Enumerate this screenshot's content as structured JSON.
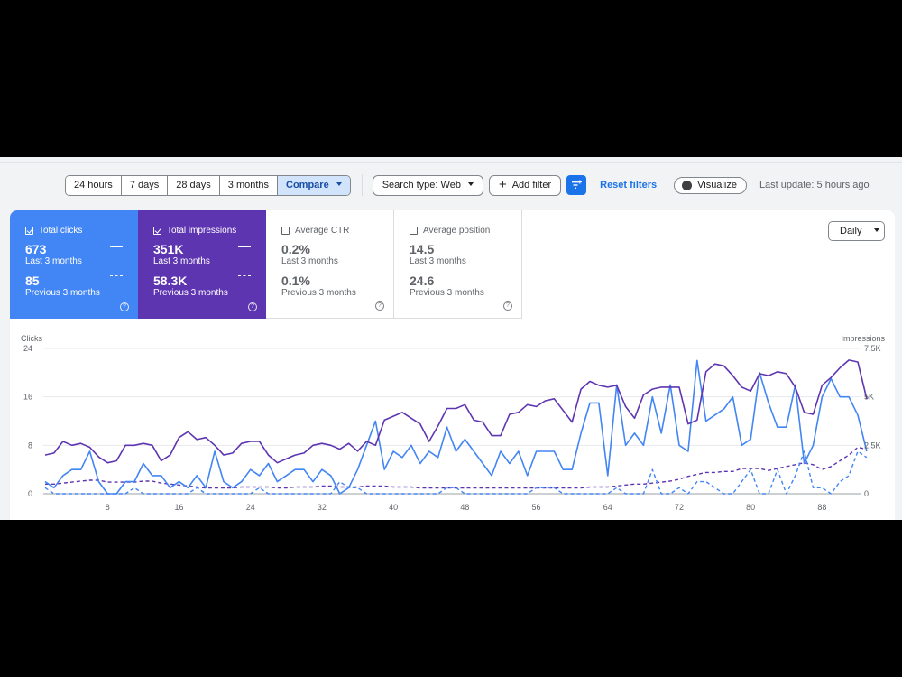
{
  "toolbar": {
    "ranges": [
      "24 hours",
      "7 days",
      "28 days",
      "3 months"
    ],
    "compare_label": "Compare",
    "search_type_label": "Search type: Web",
    "add_filter_label": "Add filter",
    "reset_filters_label": "Reset filters",
    "visualize_label": "Visualize",
    "last_update": "Last update: 5 hours ago"
  },
  "metrics": [
    {
      "label": "Total clicks",
      "checked": true,
      "value": "673",
      "period": "Last 3 months",
      "compare_value": "85",
      "compare_period": "Previous 3 months",
      "color": "#4285f4"
    },
    {
      "label": "Total impressions",
      "checked": true,
      "value": "351K",
      "period": "Last 3 months",
      "compare_value": "58.3K",
      "compare_period": "Previous 3 months",
      "color": "#5e35b1"
    },
    {
      "label": "Average CTR",
      "checked": false,
      "value": "0.2%",
      "period": "Last 3 months",
      "compare_value": "0.1%",
      "compare_period": "Previous 3 months",
      "color": "#ffffff"
    },
    {
      "label": "Average position",
      "checked": false,
      "value": "14.5",
      "period": "Last 3 months",
      "compare_value": "24.6",
      "compare_period": "Previous 3 months",
      "color": "#ffffff"
    }
  ],
  "granularity_label": "Daily",
  "chart_data": {
    "type": "line",
    "ylabel": "Clicks",
    "y2label": "Impressions",
    "ylim": [
      0,
      24
    ],
    "y2lim": [
      0,
      7500
    ],
    "yticks": [
      "0",
      "8",
      "16",
      "24"
    ],
    "y2ticks": [
      "0",
      "2.5K",
      "5K",
      "7.5K"
    ],
    "xticks": [
      "8",
      "16",
      "24",
      "32",
      "40",
      "48",
      "56",
      "64",
      "72",
      "80",
      "88"
    ],
    "xticks_values": [
      8,
      16,
      24,
      32,
      40,
      48,
      56,
      64,
      72,
      80,
      88
    ],
    "x_range": [
      1,
      92
    ],
    "grid": true,
    "series": [
      {
        "name": "Total clicks",
        "axis": "left",
        "color": "#4285f4",
        "style": "solid",
        "values": [
          2,
          1,
          3,
          4,
          4,
          7,
          2,
          0,
          0,
          2,
          2,
          5,
          3,
          3,
          1,
          2,
          1,
          3,
          1,
          7,
          2,
          1,
          2,
          4,
          3,
          5,
          2,
          3,
          4,
          4,
          2,
          4,
          3,
          0,
          1,
          4,
          8,
          12,
          4,
          7,
          6,
          8,
          5,
          7,
          6,
          11,
          7,
          9,
          7,
          5,
          3,
          7,
          5,
          7,
          3,
          7,
          7,
          7,
          4,
          4,
          10,
          15,
          15,
          3,
          18,
          8,
          10,
          8,
          16,
          10,
          18,
          8,
          7,
          22,
          12,
          13,
          14,
          16,
          8,
          9,
          20,
          15,
          11,
          11,
          18,
          5,
          8,
          16,
          19,
          16,
          16,
          13,
          7
        ]
      },
      {
        "name": "Total impressions",
        "axis": "right",
        "color": "#5e35b1",
        "style": "solid",
        "values": [
          2000,
          2100,
          2700,
          2500,
          2600,
          2400,
          1900,
          1600,
          1700,
          2500,
          2500,
          2600,
          2500,
          1700,
          2000,
          2900,
          3200,
          2800,
          2900,
          2500,
          2000,
          2100,
          2600,
          2700,
          2700,
          2000,
          1600,
          1800,
          2000,
          2100,
          2500,
          2600,
          2500,
          2300,
          2600,
          2200,
          2700,
          2500,
          3800,
          4000,
          4200,
          3900,
          3600,
          2700,
          3500,
          4400,
          4400,
          4600,
          3800,
          3700,
          3000,
          3000,
          4100,
          4200,
          4600,
          4500,
          4800,
          4900,
          4300,
          3700,
          5400,
          5800,
          5600,
          5500,
          5600,
          4500,
          3900,
          5100,
          5400,
          5500,
          5500,
          5500,
          3600,
          3800,
          6300,
          6700,
          6600,
          6100,
          5500,
          5300,
          6200,
          6100,
          6300,
          6200,
          5500,
          4200,
          4100,
          5600,
          6000,
          6500,
          6900,
          6800,
          4900
        ]
      },
      {
        "name": "Total clicks (previous 3 months)",
        "axis": "left",
        "color": "#4285f4",
        "style": "dashed",
        "values": [
          1,
          0,
          0,
          0,
          0,
          0,
          0,
          0,
          0,
          0,
          1,
          0,
          0,
          0,
          0,
          0,
          0,
          1,
          0,
          0,
          0,
          0,
          0,
          0,
          1,
          0,
          0,
          0,
          0,
          0,
          0,
          0,
          0,
          2,
          1,
          1,
          0,
          0,
          0,
          0,
          0,
          0,
          0,
          0,
          0,
          1,
          1,
          0,
          0,
          0,
          0,
          0,
          0,
          0,
          0,
          1,
          1,
          1,
          0,
          0,
          0,
          0,
          0,
          0,
          1,
          0,
          0,
          0,
          4,
          0,
          0,
          1,
          0,
          2,
          2,
          1,
          0,
          0,
          2,
          4,
          0,
          0,
          4,
          0,
          3,
          7,
          1,
          1,
          0,
          2,
          3,
          7,
          6
        ]
      },
      {
        "name": "Total impressions (previous 3 months)",
        "axis": "right",
        "color": "#5e35b1",
        "style": "dashed",
        "values": [
          500,
          500,
          550,
          600,
          650,
          700,
          700,
          600,
          600,
          600,
          600,
          650,
          650,
          550,
          500,
          450,
          400,
          350,
          300,
          300,
          300,
          300,
          350,
          350,
          350,
          350,
          300,
          300,
          350,
          350,
          350,
          400,
          400,
          350,
          350,
          350,
          400,
          400,
          400,
          350,
          350,
          350,
          300,
          300,
          300,
          300,
          300,
          300,
          300,
          300,
          300,
          300,
          300,
          300,
          300,
          300,
          300,
          300,
          300,
          300,
          300,
          350,
          350,
          350,
          400,
          450,
          500,
          500,
          550,
          600,
          650,
          750,
          900,
          1000,
          1100,
          1100,
          1150,
          1150,
          1300,
          1300,
          1300,
          1200,
          1300,
          1400,
          1500,
          1600,
          1500,
          1250,
          1400,
          1700,
          2000,
          2400,
          2300
        ]
      }
    ]
  }
}
